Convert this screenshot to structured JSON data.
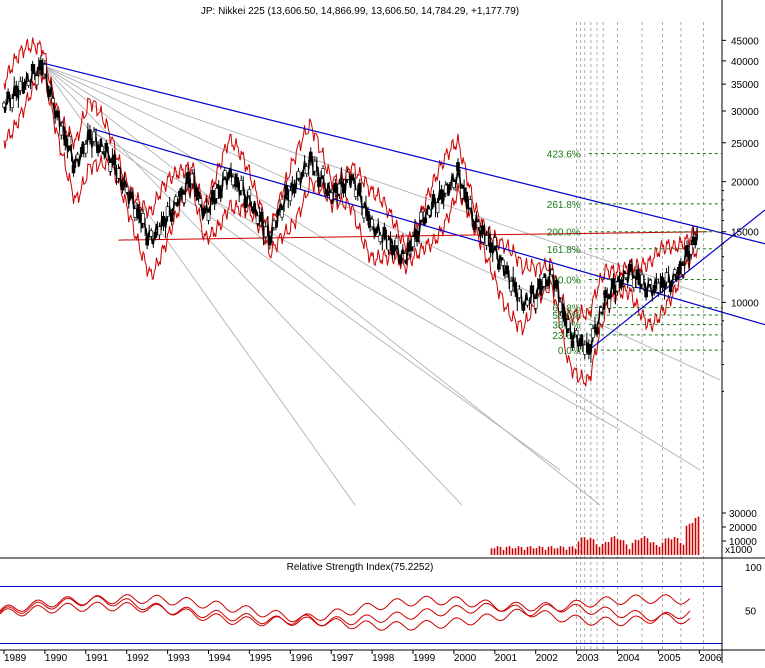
{
  "chart_data": [
    {
      "type": "candlestick",
      "title": "JP: Nikkei 225 (13,606.50, 14,866.99, 13,606.50, 14,784.29, +1,177.79)",
      "x_labels": [
        "1989",
        "1990",
        "1991",
        "1992",
        "1993",
        "1994",
        "1995",
        "1996",
        "1997",
        "1998",
        "1999",
        "2000",
        "2001",
        "2002",
        "2003",
        "2004",
        "2005",
        "2006"
      ],
      "price_scale": "log",
      "y_ticks": [
        10000,
        15000,
        20000,
        25000,
        30000,
        35000,
        40000,
        45000
      ],
      "y_tick_labels": [
        "10000",
        "15000",
        "20000",
        "25000",
        "30000",
        "35000",
        "40000",
        "45000"
      ],
      "ylim": [
        4000,
        50000
      ],
      "price_path": [
        {
          "x": 1989.0,
          "y": 31000
        },
        {
          "x": 1989.5,
          "y": 35000
        },
        {
          "x": 1989.95,
          "y": 38900
        },
        {
          "x": 1990.3,
          "y": 29000
        },
        {
          "x": 1990.75,
          "y": 22000
        },
        {
          "x": 1991.1,
          "y": 26000
        },
        {
          "x": 1991.6,
          "y": 23000
        },
        {
          "x": 1992.0,
          "y": 19000
        },
        {
          "x": 1992.6,
          "y": 14300
        },
        {
          "x": 1993.1,
          "y": 17000
        },
        {
          "x": 1993.6,
          "y": 20500
        },
        {
          "x": 1993.9,
          "y": 16500
        },
        {
          "x": 1994.5,
          "y": 21000
        },
        {
          "x": 1995.0,
          "y": 18000
        },
        {
          "x": 1995.5,
          "y": 14500
        },
        {
          "x": 1995.8,
          "y": 17500
        },
        {
          "x": 1996.5,
          "y": 22600
        },
        {
          "x": 1997.0,
          "y": 18500
        },
        {
          "x": 1997.5,
          "y": 20500
        },
        {
          "x": 1998.0,
          "y": 15500
        },
        {
          "x": 1998.8,
          "y": 12900
        },
        {
          "x": 1999.3,
          "y": 16500
        },
        {
          "x": 1999.8,
          "y": 18900
        },
        {
          "x": 2000.1,
          "y": 20800
        },
        {
          "x": 2000.5,
          "y": 16000
        },
        {
          "x": 2001.0,
          "y": 13500
        },
        {
          "x": 2001.7,
          "y": 9900
        },
        {
          "x": 2002.0,
          "y": 10500
        },
        {
          "x": 2002.4,
          "y": 11800
        },
        {
          "x": 2002.8,
          "y": 8500
        },
        {
          "x": 2003.3,
          "y": 7600
        },
        {
          "x": 2003.7,
          "y": 10200
        },
        {
          "x": 2004.3,
          "y": 11900
        },
        {
          "x": 2004.8,
          "y": 10800
        },
        {
          "x": 2005.4,
          "y": 11500
        },
        {
          "x": 2005.7,
          "y": 13000
        },
        {
          "x": 2005.95,
          "y": 14800
        }
      ],
      "fibonacci": [
        {
          "label": "0.0%",
          "value": 7603
        },
        {
          "label": "23.6%",
          "value": 8300
        },
        {
          "label": "38.2%",
          "value": 8800
        },
        {
          "label": "50.0%",
          "value": 9300
        },
        {
          "label": "61.8%",
          "value": 9700
        },
        {
          "label": "100.0%",
          "value": 11400
        },
        {
          "label": "161.8%",
          "value": 13600
        },
        {
          "label": "200.0%",
          "value": 15000
        },
        {
          "label": "261.8%",
          "value": 17600
        },
        {
          "label": "423.6%",
          "value": 23500
        }
      ],
      "volume_ticks": [
        "30000",
        "20000",
        "10000"
      ],
      "volume_unit": "x1000",
      "colors": {
        "price": "#000000",
        "bands": "#cc0000",
        "trend": "#0000cc",
        "fib": "#1a7a1a",
        "fan": "#aaaaaa"
      }
    },
    {
      "type": "line",
      "title": "Relative Strength Index(75.2252)",
      "ylim": [
        0,
        100
      ],
      "y_ticks": [
        50,
        100
      ],
      "y_tick_labels": [
        "50",
        "100"
      ],
      "bands": [
        70,
        30
      ]
    }
  ]
}
